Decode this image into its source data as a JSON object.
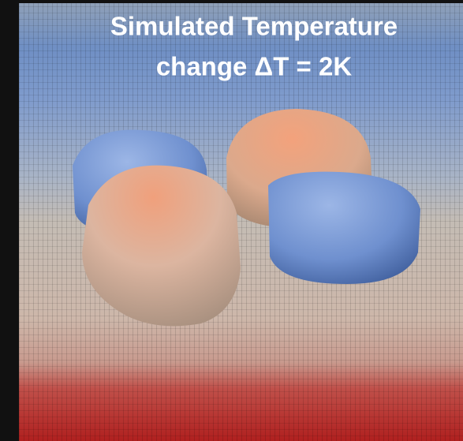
{
  "image": {
    "title_lines": [
      "Simulated Temperature",
      "change ΔT = 2K"
    ]
  }
}
